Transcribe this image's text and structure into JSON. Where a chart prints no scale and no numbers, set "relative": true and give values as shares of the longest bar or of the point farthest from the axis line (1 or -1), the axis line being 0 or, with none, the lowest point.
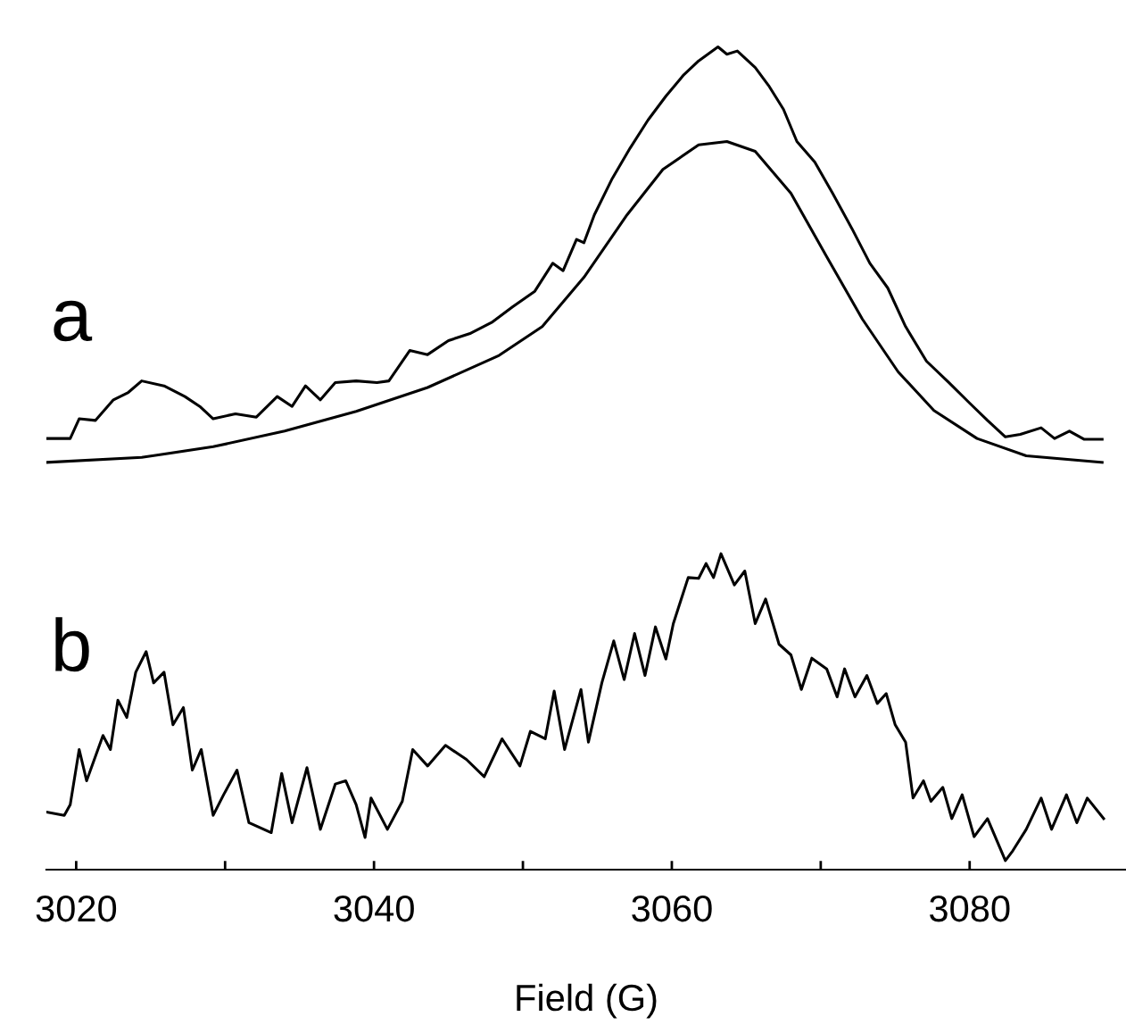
{
  "chart_data": {
    "type": "line",
    "relative": true,
    "xlabel": "Field (G)",
    "xlim": [
      3018,
      3090.5
    ],
    "xticks": [
      3020,
      {
        "value": 3030,
        "label": null
      },
      3040,
      {
        "value": 3050,
        "label": null
      },
      3060,
      {
        "value": 3070,
        "label": null
      },
      3080
    ],
    "grid": false,
    "legend": false,
    "marker": "none",
    "line_style": "solid",
    "tick_labels": "x",
    "annotations": [
      "a",
      "b"
    ],
    "series": [
      {
        "color": "#000000",
        "x": [
          3018.0,
          3019.6,
          3020.2,
          3021.3,
          3022.5,
          3023.5,
          3024.4,
          3025.9,
          3027.3,
          3028.3,
          3029.2,
          3030.7,
          3032.1,
          3033.5,
          3034.5,
          3035.4,
          3036.4,
          3037.4,
          3038.8,
          3040.2,
          3041.0,
          3042.4,
          3043.6,
          3045.0,
          3046.5,
          3047.9,
          3049.3,
          3050.8,
          3052.0,
          3052.7,
          3053.6,
          3054.1,
          3054.8,
          3056.0,
          3057.2,
          3058.4,
          3059.6,
          3060.8,
          3061.8,
          3063.1,
          3063.7,
          3064.4,
          3065.6,
          3066.5,
          3067.5,
          3068.4,
          3069.6,
          3070.8,
          3072.1,
          3073.3,
          3074.5,
          3075.7,
          3077.1,
          3078.6,
          3080.0,
          3081.2,
          3082.4,
          3083.4,
          3084.8,
          3085.7,
          3086.7,
          3087.7,
          3088.9
        ],
        "values": [
          0.524,
          0.524,
          0.548,
          0.546,
          0.571,
          0.58,
          0.594,
          0.588,
          0.575,
          0.563,
          0.548,
          0.554,
          0.55,
          0.575,
          0.563,
          0.588,
          0.571,
          0.592,
          0.594,
          0.592,
          0.594,
          0.631,
          0.626,
          0.643,
          0.652,
          0.665,
          0.684,
          0.703,
          0.737,
          0.728,
          0.766,
          0.762,
          0.796,
          0.84,
          0.877,
          0.911,
          0.94,
          0.966,
          0.983,
          1.0,
          0.991,
          0.995,
          0.975,
          0.953,
          0.924,
          0.885,
          0.86,
          0.822,
          0.779,
          0.737,
          0.707,
          0.66,
          0.618,
          0.592,
          0.567,
          0.546,
          0.526,
          0.529,
          0.537,
          0.524,
          0.533,
          0.523,
          0.523
        ]
      },
      {
        "color": "#000000",
        "x": [
          3018.0,
          3024.4,
          3029.2,
          3034.0,
          3038.8,
          3043.6,
          3048.4,
          3051.3,
          3054.1,
          3057.0,
          3059.4,
          3061.8,
          3063.7,
          3065.6,
          3068.0,
          3070.4,
          3072.8,
          3075.2,
          3077.6,
          3080.5,
          3083.8,
          3088.9
        ],
        "values": [
          0.495,
          0.501,
          0.514,
          0.533,
          0.557,
          0.586,
          0.625,
          0.66,
          0.72,
          0.796,
          0.851,
          0.881,
          0.885,
          0.873,
          0.822,
          0.745,
          0.669,
          0.605,
          0.558,
          0.524,
          0.503,
          0.495
        ]
      },
      {
        "color": "#000000",
        "x": [
          3018.0,
          3019.2,
          3019.6,
          3020.2,
          3020.7,
          3021.8,
          3022.3,
          3022.8,
          3023.4,
          3024.0,
          3024.7,
          3025.2,
          3025.9,
          3026.5,
          3027.2,
          3027.8,
          3028.4,
          3029.2,
          3029.9,
          3030.8,
          3031.6,
          3033.1,
          3033.8,
          3034.5,
          3035.5,
          3036.4,
          3037.4,
          3038.1,
          3038.8,
          3039.4,
          3039.8,
          3040.9,
          3041.9,
          3042.6,
          3043.6,
          3044.8,
          3046.2,
          3047.4,
          3048.6,
          3049.8,
          3050.5,
          3051.5,
          3052.1,
          3052.8,
          3053.9,
          3054.4,
          3055.3,
          3056.1,
          3056.8,
          3057.5,
          3058.2,
          3058.9,
          3059.6,
          3060.1,
          3061.1,
          3061.8,
          3062.3,
          3062.8,
          3063.3,
          3064.2,
          3064.9,
          3065.6,
          3066.3,
          3067.2,
          3068.0,
          3068.7,
          3069.4,
          3070.4,
          3071.1,
          3071.6,
          3072.3,
          3073.1,
          3073.8,
          3074.4,
          3075.0,
          3075.7,
          3076.2,
          3076.9,
          3077.4,
          3078.2,
          3078.8,
          3079.5,
          3080.3,
          3081.2,
          3082.4,
          3082.9,
          3083.8,
          3084.8,
          3085.5,
          3086.5,
          3087.2,
          3087.9,
          3089.0
        ],
        "values": [
          0.07,
          0.066,
          0.079,
          0.146,
          0.108,
          0.163,
          0.146,
          0.206,
          0.185,
          0.24,
          0.265,
          0.227,
          0.24,
          0.176,
          0.197,
          0.121,
          0.146,
          0.066,
          0.091,
          0.121,
          0.057,
          0.045,
          0.117,
          0.057,
          0.124,
          0.049,
          0.104,
          0.108,
          0.079,
          0.039,
          0.087,
          0.049,
          0.083,
          0.146,
          0.126,
          0.151,
          0.134,
          0.113,
          0.159,
          0.126,
          0.168,
          0.159,
          0.217,
          0.146,
          0.219,
          0.155,
          0.227,
          0.278,
          0.231,
          0.287,
          0.236,
          0.295,
          0.256,
          0.299,
          0.355,
          0.354,
          0.372,
          0.355,
          0.384,
          0.346,
          0.363,
          0.299,
          0.329,
          0.274,
          0.261,
          0.219,
          0.257,
          0.244,
          0.21,
          0.244,
          0.21,
          0.236,
          0.202,
          0.214,
          0.176,
          0.155,
          0.087,
          0.108,
          0.083,
          0.1,
          0.062,
          0.091,
          0.04,
          0.062,
          0.011,
          0.023,
          0.049,
          0.087,
          0.049,
          0.091,
          0.057,
          0.087,
          0.062
        ]
      }
    ]
  }
}
